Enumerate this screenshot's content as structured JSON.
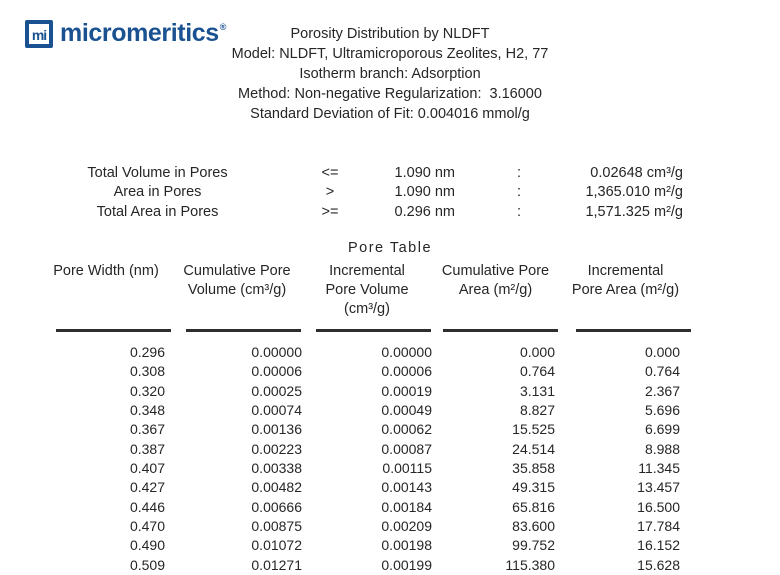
{
  "logo": {
    "icon_text": "mi",
    "wordmark": "micromeritics",
    "registered": "®",
    "brand_color": "#1a5191"
  },
  "header": {
    "title": "Porosity Distribution by NLDFT",
    "lines": [
      "Model: NLDFT, Ultramicroporous Zeolites, H2, 77",
      "Isotherm branch: Adsorption",
      "Method: Non-negative Regularization:  3.16000",
      "Standard Deviation of Fit: 0.004016 mmol/g"
    ]
  },
  "summary": {
    "rows": [
      {
        "label": "Total Volume in Pores",
        "operator": "<=",
        "threshold": "1.090 nm",
        "separator": ":",
        "value": "0.02648 cm³/g"
      },
      {
        "label": "Area in Pores",
        "operator": ">",
        "threshold": "1.090 nm",
        "separator": ":",
        "value": "1,365.010 m²/g"
      },
      {
        "label": "Total Area in Pores",
        "operator": ">=",
        "threshold": "0.296 nm",
        "separator": ":",
        "value": "1,571.325 m²/g"
      }
    ]
  },
  "pore_table": {
    "title": "Pore Table",
    "column_headers": [
      {
        "lines": [
          "Pore Width (nm)"
        ]
      },
      {
        "lines": [
          "Cumulative Pore",
          "Volume (cm³/g)"
        ]
      },
      {
        "lines": [
          "Incremental",
          "Pore Volume",
          "(cm³/g)"
        ]
      },
      {
        "lines": [
          "Cumulative Pore",
          "Area (m²/g)"
        ]
      },
      {
        "lines": [
          "Incremental",
          "Pore Area (m²/g)"
        ]
      }
    ],
    "rows": [
      [
        "0.296",
        "0.00000",
        "0.00000",
        "0.000",
        "0.000"
      ],
      [
        "0.308",
        "0.00006",
        "0.00006",
        "0.764",
        "0.764"
      ],
      [
        "0.320",
        "0.00025",
        "0.00019",
        "3.131",
        "2.367"
      ],
      [
        "0.348",
        "0.00074",
        "0.00049",
        "8.827",
        "5.696"
      ],
      [
        "0.367",
        "0.00136",
        "0.00062",
        "15.525",
        "6.699"
      ],
      [
        "0.387",
        "0.00223",
        "0.00087",
        "24.514",
        "8.988"
      ],
      [
        "0.407",
        "0.00338",
        "0.00115",
        "35.858",
        "11.345"
      ],
      [
        "0.427",
        "0.00482",
        "0.00143",
        "49.315",
        "13.457"
      ],
      [
        "0.446",
        "0.00666",
        "0.00184",
        "65.816",
        "16.500"
      ],
      [
        "0.470",
        "0.00875",
        "0.00209",
        "83.600",
        "17.784"
      ],
      [
        "0.490",
        "0.01072",
        "0.00198",
        "99.752",
        "16.152"
      ],
      [
        "0.509",
        "0.01271",
        "0.00199",
        "115.380",
        "15.628"
      ]
    ]
  }
}
